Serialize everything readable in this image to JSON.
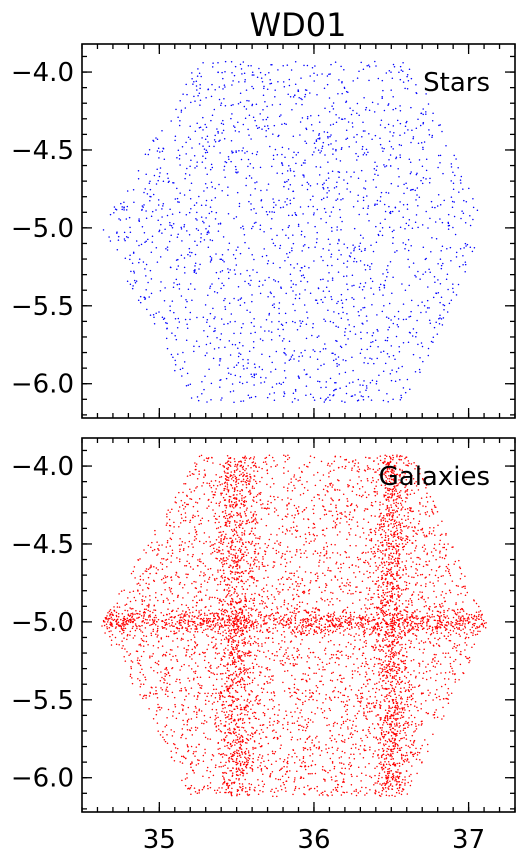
{
  "chart_data": {
    "title": "WD01",
    "panels": [
      {
        "type": "scatter",
        "label": "Stars",
        "color": "#0000ff",
        "xlim": [
          34.5,
          37.3
        ],
        "ylim": [
          -6.22,
          -3.82
        ],
        "x_ticks": [
          "35",
          "36",
          "37"
        ],
        "y_ticks": [
          "−4.0",
          "−4.5",
          "−5.0",
          "−5.5",
          "−6.0"
        ],
        "show_x_tick_labels": false,
        "approx_points": 2000,
        "footprint_hexagon": [
          [
            35.25,
            -3.93
          ],
          [
            36.65,
            -3.93
          ],
          [
            37.12,
            -5.02
          ],
          [
            36.6,
            -6.12
          ],
          [
            35.2,
            -6.12
          ],
          [
            34.62,
            -5.02
          ]
        ],
        "overdensity_bands": []
      },
      {
        "type": "scatter",
        "label": "Galaxies",
        "color": "#ff0000",
        "xlim": [
          34.5,
          37.3
        ],
        "ylim": [
          -6.22,
          -3.82
        ],
        "x_ticks": [
          "35",
          "36",
          "37"
        ],
        "y_ticks": [
          "−4.0",
          "−4.5",
          "−5.0",
          "−5.5",
          "−6.0"
        ],
        "show_x_tick_labels": true,
        "approx_points": 7000,
        "footprint_hexagon": [
          [
            35.25,
            -3.93
          ],
          [
            36.65,
            -3.93
          ],
          [
            37.12,
            -5.02
          ],
          [
            36.6,
            -6.12
          ],
          [
            35.2,
            -6.12
          ],
          [
            34.62,
            -5.02
          ]
        ],
        "overdensity_bands": [
          {
            "axis": "x",
            "center": 35.5,
            "width": 0.12
          },
          {
            "axis": "x",
            "center": 36.5,
            "width": 0.1
          },
          {
            "axis": "y",
            "center": -5.0,
            "width": 0.08
          }
        ]
      }
    ]
  }
}
